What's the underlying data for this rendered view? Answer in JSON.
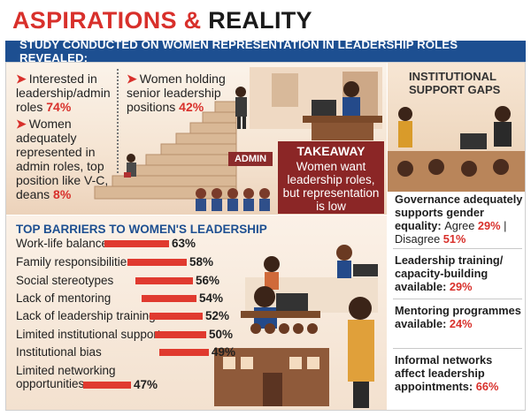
{
  "header": {
    "title_part1": "ASPIRATIONS",
    "title_amp": "&",
    "title_part2": "REALITY",
    "banner": "STUDY CONDUCTED ON WOMEN REPRESENTATION IN LEADERSHIP ROLES REVEALED:"
  },
  "stats": {
    "interested": {
      "text": "Interested in leadership/admin roles",
      "value": "74%"
    },
    "adequately": {
      "text": "Women adequately represented in admin roles, top position like V-C, deans",
      "value": "8%"
    },
    "senior": {
      "text": "Women holding senior leadership positions",
      "value": "42%"
    }
  },
  "illustration": {
    "admin_sign": "ADMIN"
  },
  "takeaway": {
    "heading": "TAKEAWAY",
    "body": "Women want leadership roles, but representation is low"
  },
  "institutional": {
    "heading": "INSTITUTIONAL SUPPORT GAPS",
    "items": [
      {
        "text": "Governance adequately supports gender equality:",
        "agree_label": "Agree",
        "agree": "29%",
        "sep": "|",
        "disagree_label": "Disagree",
        "disagree": "51%"
      },
      {
        "text": "Leadership training/ capacity-building available:",
        "value": "29%"
      },
      {
        "text": "Mentoring programmes available:",
        "value": "24%"
      },
      {
        "text": "Informal networks affect leadership appointments:",
        "value": "66%"
      }
    ]
  },
  "chart_data": {
    "type": "bar",
    "title": "TOP BARRIERS TO WOMEN'S LEADERSHIP",
    "categories": [
      "Work-life balance",
      "Family responsibilities",
      "Social stereotypes",
      "Lack of mentoring",
      "Lack of leadership training",
      "Limited institutional support",
      "Institutional bias",
      "Limited networking opportunities"
    ],
    "values": [
      63,
      58,
      56,
      54,
      52,
      50,
      49,
      47
    ],
    "value_labels": [
      "63%",
      "58%",
      "56%",
      "54%",
      "52%",
      "50%",
      "49%",
      "47%"
    ],
    "unit": "%",
    "orientation": "horizontal",
    "bar_color": "#e03a2f"
  },
  "colors": {
    "accent": "#d8302b",
    "banner": "#1d4f91",
    "takeaway": "#8b2626",
    "bar": "#e03a2f"
  }
}
